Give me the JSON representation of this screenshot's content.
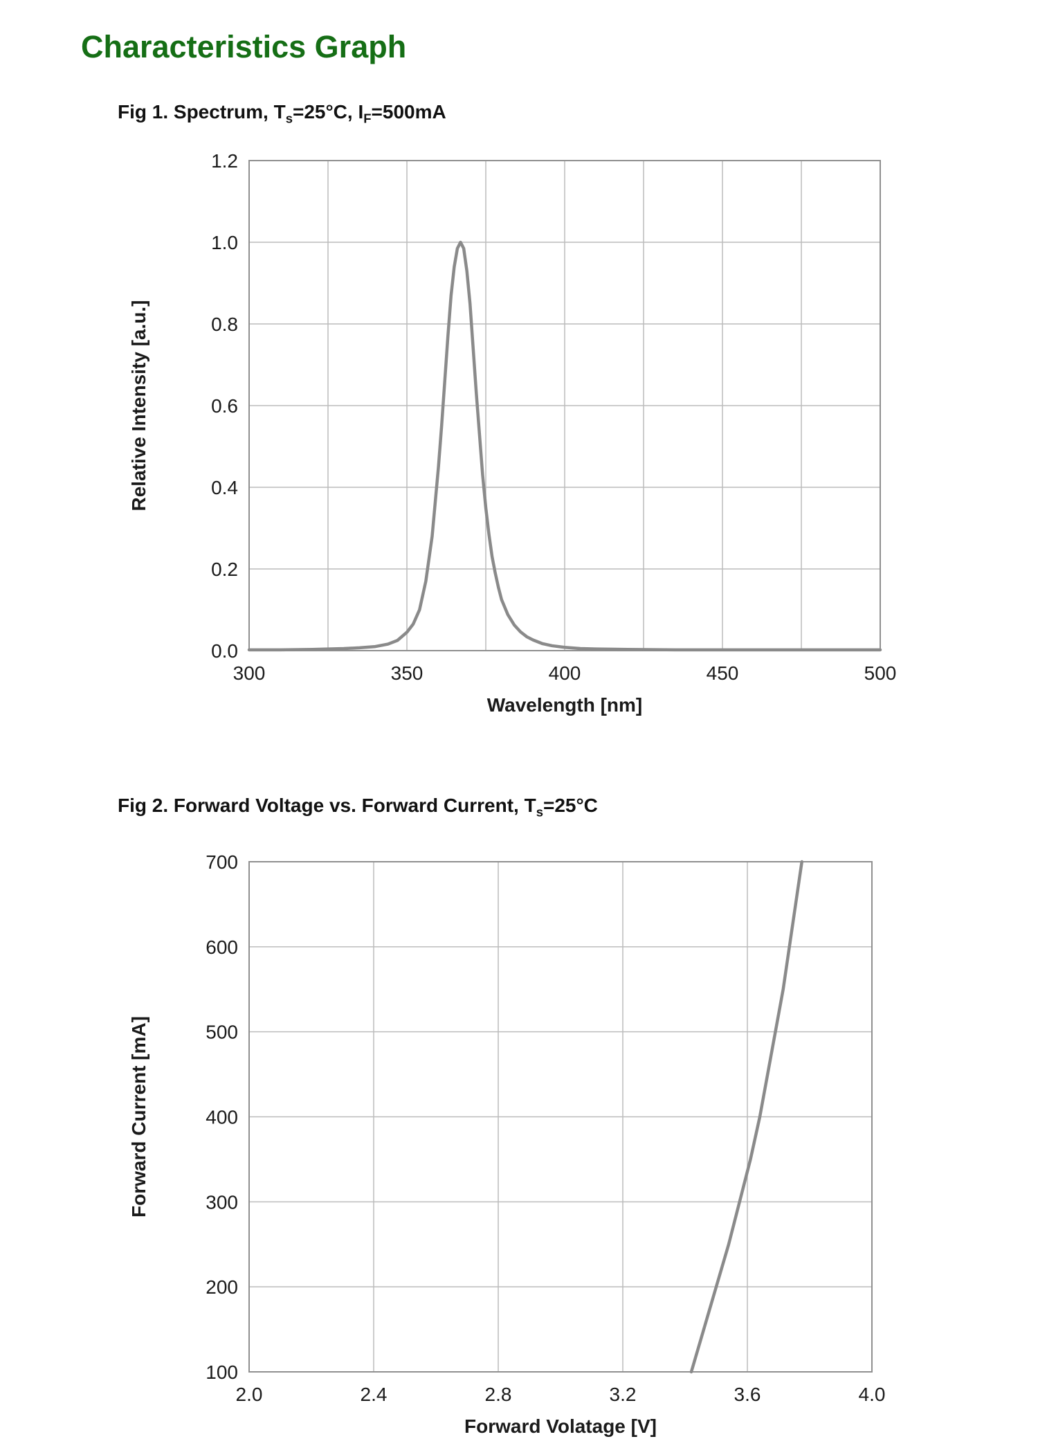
{
  "page": {
    "title": "Characteristics Graph",
    "title_color": "#156e15",
    "background": "#ffffff"
  },
  "colors": {
    "curve": "#8a8a8a",
    "grid": "#bcbcbc",
    "border": "#8f8f8f",
    "text": "#1a1a1a"
  },
  "figures": [
    {
      "caption_parts": [
        {
          "t": "Fig 1. Spectrum, T"
        },
        {
          "sub": "s"
        },
        {
          "t": "=25°C, I"
        },
        {
          "sub": "F"
        },
        {
          "t": "=500mA"
        }
      ]
    },
    {
      "caption_parts": [
        {
          "t": "Fig 2. Forward Voltage vs. Forward Current, T"
        },
        {
          "sub": "s"
        },
        {
          "t": "=25°C"
        }
      ]
    }
  ],
  "chart_data": [
    {
      "type": "line",
      "title": "Fig 1. Spectrum, Ts=25°C, IF=500mA",
      "xlabel": "Wavelength [nm]",
      "ylabel": "Relative Intensity [a.u.]",
      "xlim": [
        300,
        500
      ],
      "ylim": [
        0,
        1.2
      ],
      "grid": true,
      "legend": "none",
      "x_grid": [
        300,
        325,
        350,
        375,
        400,
        425,
        450,
        475,
        500
      ],
      "x_ticks": [
        {
          "v": 300,
          "label": "300"
        },
        {
          "v": 350,
          "label": "350"
        },
        {
          "v": 400,
          "label": "400"
        },
        {
          "v": 450,
          "label": "450"
        },
        {
          "v": 500,
          "label": "500"
        }
      ],
      "y_grid": [
        0,
        0.2,
        0.4,
        0.6,
        0.8,
        1.0,
        1.2
      ],
      "y_ticks": [
        {
          "v": 0.0,
          "label": "0.0"
        },
        {
          "v": 0.2,
          "label": "0.2"
        },
        {
          "v": 0.4,
          "label": "0.4"
        },
        {
          "v": 0.6,
          "label": "0.6"
        },
        {
          "v": 0.8,
          "label": "0.8"
        },
        {
          "v": 1.0,
          "label": "1.0"
        },
        {
          "v": 1.2,
          "label": "1.2"
        }
      ],
      "series": [
        {
          "name": "spectrum",
          "peak_wavelength_nm": 367,
          "points": [
            [
              300,
              0.002
            ],
            [
              310,
              0.002
            ],
            [
              320,
              0.003
            ],
            [
              330,
              0.005
            ],
            [
              335,
              0.007
            ],
            [
              340,
              0.01
            ],
            [
              344,
              0.016
            ],
            [
              347,
              0.025
            ],
            [
              350,
              0.045
            ],
            [
              352,
              0.065
            ],
            [
              354,
              0.1
            ],
            [
              356,
              0.17
            ],
            [
              358,
              0.28
            ],
            [
              360,
              0.45
            ],
            [
              361,
              0.55
            ],
            [
              362,
              0.66
            ],
            [
              363,
              0.77
            ],
            [
              364,
              0.87
            ],
            [
              365,
              0.94
            ],
            [
              366,
              0.985
            ],
            [
              367,
              1.0
            ],
            [
              368,
              0.985
            ],
            [
              369,
              0.93
            ],
            [
              370,
              0.85
            ],
            [
              371,
              0.74
            ],
            [
              372,
              0.63
            ],
            [
              373,
              0.53
            ],
            [
              374,
              0.43
            ],
            [
              375,
              0.35
            ],
            [
              376,
              0.285
            ],
            [
              377,
              0.23
            ],
            [
              378,
              0.19
            ],
            [
              379,
              0.155
            ],
            [
              380,
              0.125
            ],
            [
              382,
              0.088
            ],
            [
              384,
              0.063
            ],
            [
              386,
              0.046
            ],
            [
              388,
              0.034
            ],
            [
              390,
              0.026
            ],
            [
              393,
              0.017
            ],
            [
              396,
              0.012
            ],
            [
              400,
              0.008
            ],
            [
              405,
              0.005
            ],
            [
              410,
              0.004
            ],
            [
              420,
              0.003
            ],
            [
              435,
              0.002
            ],
            [
              450,
              0.002
            ],
            [
              475,
              0.002
            ],
            [
              500,
              0.002
            ]
          ]
        }
      ]
    },
    {
      "type": "line",
      "title": "Fig 2. Forward Voltage vs. Forward Current, Ts=25°C",
      "xlabel": "Forward  Volatage [V]",
      "ylabel": "Forward Current [mA]",
      "xlim": [
        2.0,
        4.0
      ],
      "ylim": [
        100,
        700
      ],
      "grid": true,
      "legend": "none",
      "x_grid": [
        2.0,
        2.4,
        2.8,
        3.2,
        3.6,
        4.0
      ],
      "x_ticks": [
        {
          "v": 2.0,
          "label": "2.0"
        },
        {
          "v": 2.4,
          "label": "2.4"
        },
        {
          "v": 2.8,
          "label": "2.8"
        },
        {
          "v": 3.2,
          "label": "3.2"
        },
        {
          "v": 3.6,
          "label": "3.6"
        },
        {
          "v": 4.0,
          "label": "4.0"
        }
      ],
      "y_grid": [
        100,
        200,
        300,
        400,
        500,
        600,
        700
      ],
      "y_ticks": [
        {
          "v": 100,
          "label": "100"
        },
        {
          "v": 200,
          "label": "200"
        },
        {
          "v": 300,
          "label": "300"
        },
        {
          "v": 400,
          "label": "400"
        },
        {
          "v": 500,
          "label": "500"
        },
        {
          "v": 600,
          "label": "600"
        },
        {
          "v": 700,
          "label": "700"
        }
      ],
      "series": [
        {
          "name": "forward-voltage-current",
          "points": [
            [
              3.42,
              100
            ],
            [
              3.46,
              150
            ],
            [
              3.5,
              200
            ],
            [
              3.54,
              250
            ],
            [
              3.575,
              300
            ],
            [
              3.61,
              350
            ],
            [
              3.64,
              400
            ],
            [
              3.665,
              450
            ],
            [
              3.69,
              500
            ],
            [
              3.715,
              550
            ],
            [
              3.735,
              600
            ],
            [
              3.755,
              650
            ],
            [
              3.775,
              700
            ]
          ]
        }
      ]
    }
  ]
}
